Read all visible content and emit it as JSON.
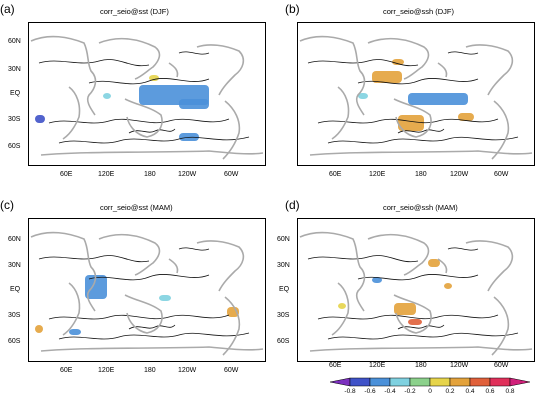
{
  "panels": [
    {
      "letter": "(a)",
      "title": "corr_seio@sst (DJF)",
      "lat_labels": [
        "60N",
        "30N",
        "EQ",
        "30S",
        "60S"
      ],
      "lon_labels": [
        "60E",
        "120E",
        "180",
        "120W",
        "60W"
      ]
    },
    {
      "letter": "(b)",
      "title": "corr_seio@ssh (DJF)",
      "lat_labels": [],
      "lon_labels": [
        "60E",
        "120E",
        "180",
        "120W",
        "60W"
      ]
    },
    {
      "letter": "(c)",
      "title": "corr_seio@sst (MAM)",
      "lat_labels": [
        "60N",
        "30N",
        "EQ",
        "30S",
        "60S"
      ],
      "lon_labels": [
        "60E",
        "120E",
        "180",
        "120W",
        "60W"
      ]
    },
    {
      "letter": "(d)",
      "title": "corr_seio@ssh (MAM)",
      "lat_labels": [
        "60N",
        "30N",
        "EQ",
        "30S",
        "60S"
      ],
      "lon_labels": [
        "60E",
        "120E",
        "180",
        "120W",
        "60W"
      ]
    }
  ],
  "colorbar": {
    "ticks": [
      "-0.8",
      "-0.6",
      "-0.4",
      "-0.2",
      "0",
      "0.2",
      "0.4",
      "0.6",
      "0.8"
    ],
    "colors": [
      "#7b2fbe",
      "#3f52c8",
      "#4a90d9",
      "#7fd1e0",
      "#8bd18b",
      "#e6d44a",
      "#e3a23b",
      "#e0603a",
      "#e0305a",
      "#d0207a"
    ]
  }
}
